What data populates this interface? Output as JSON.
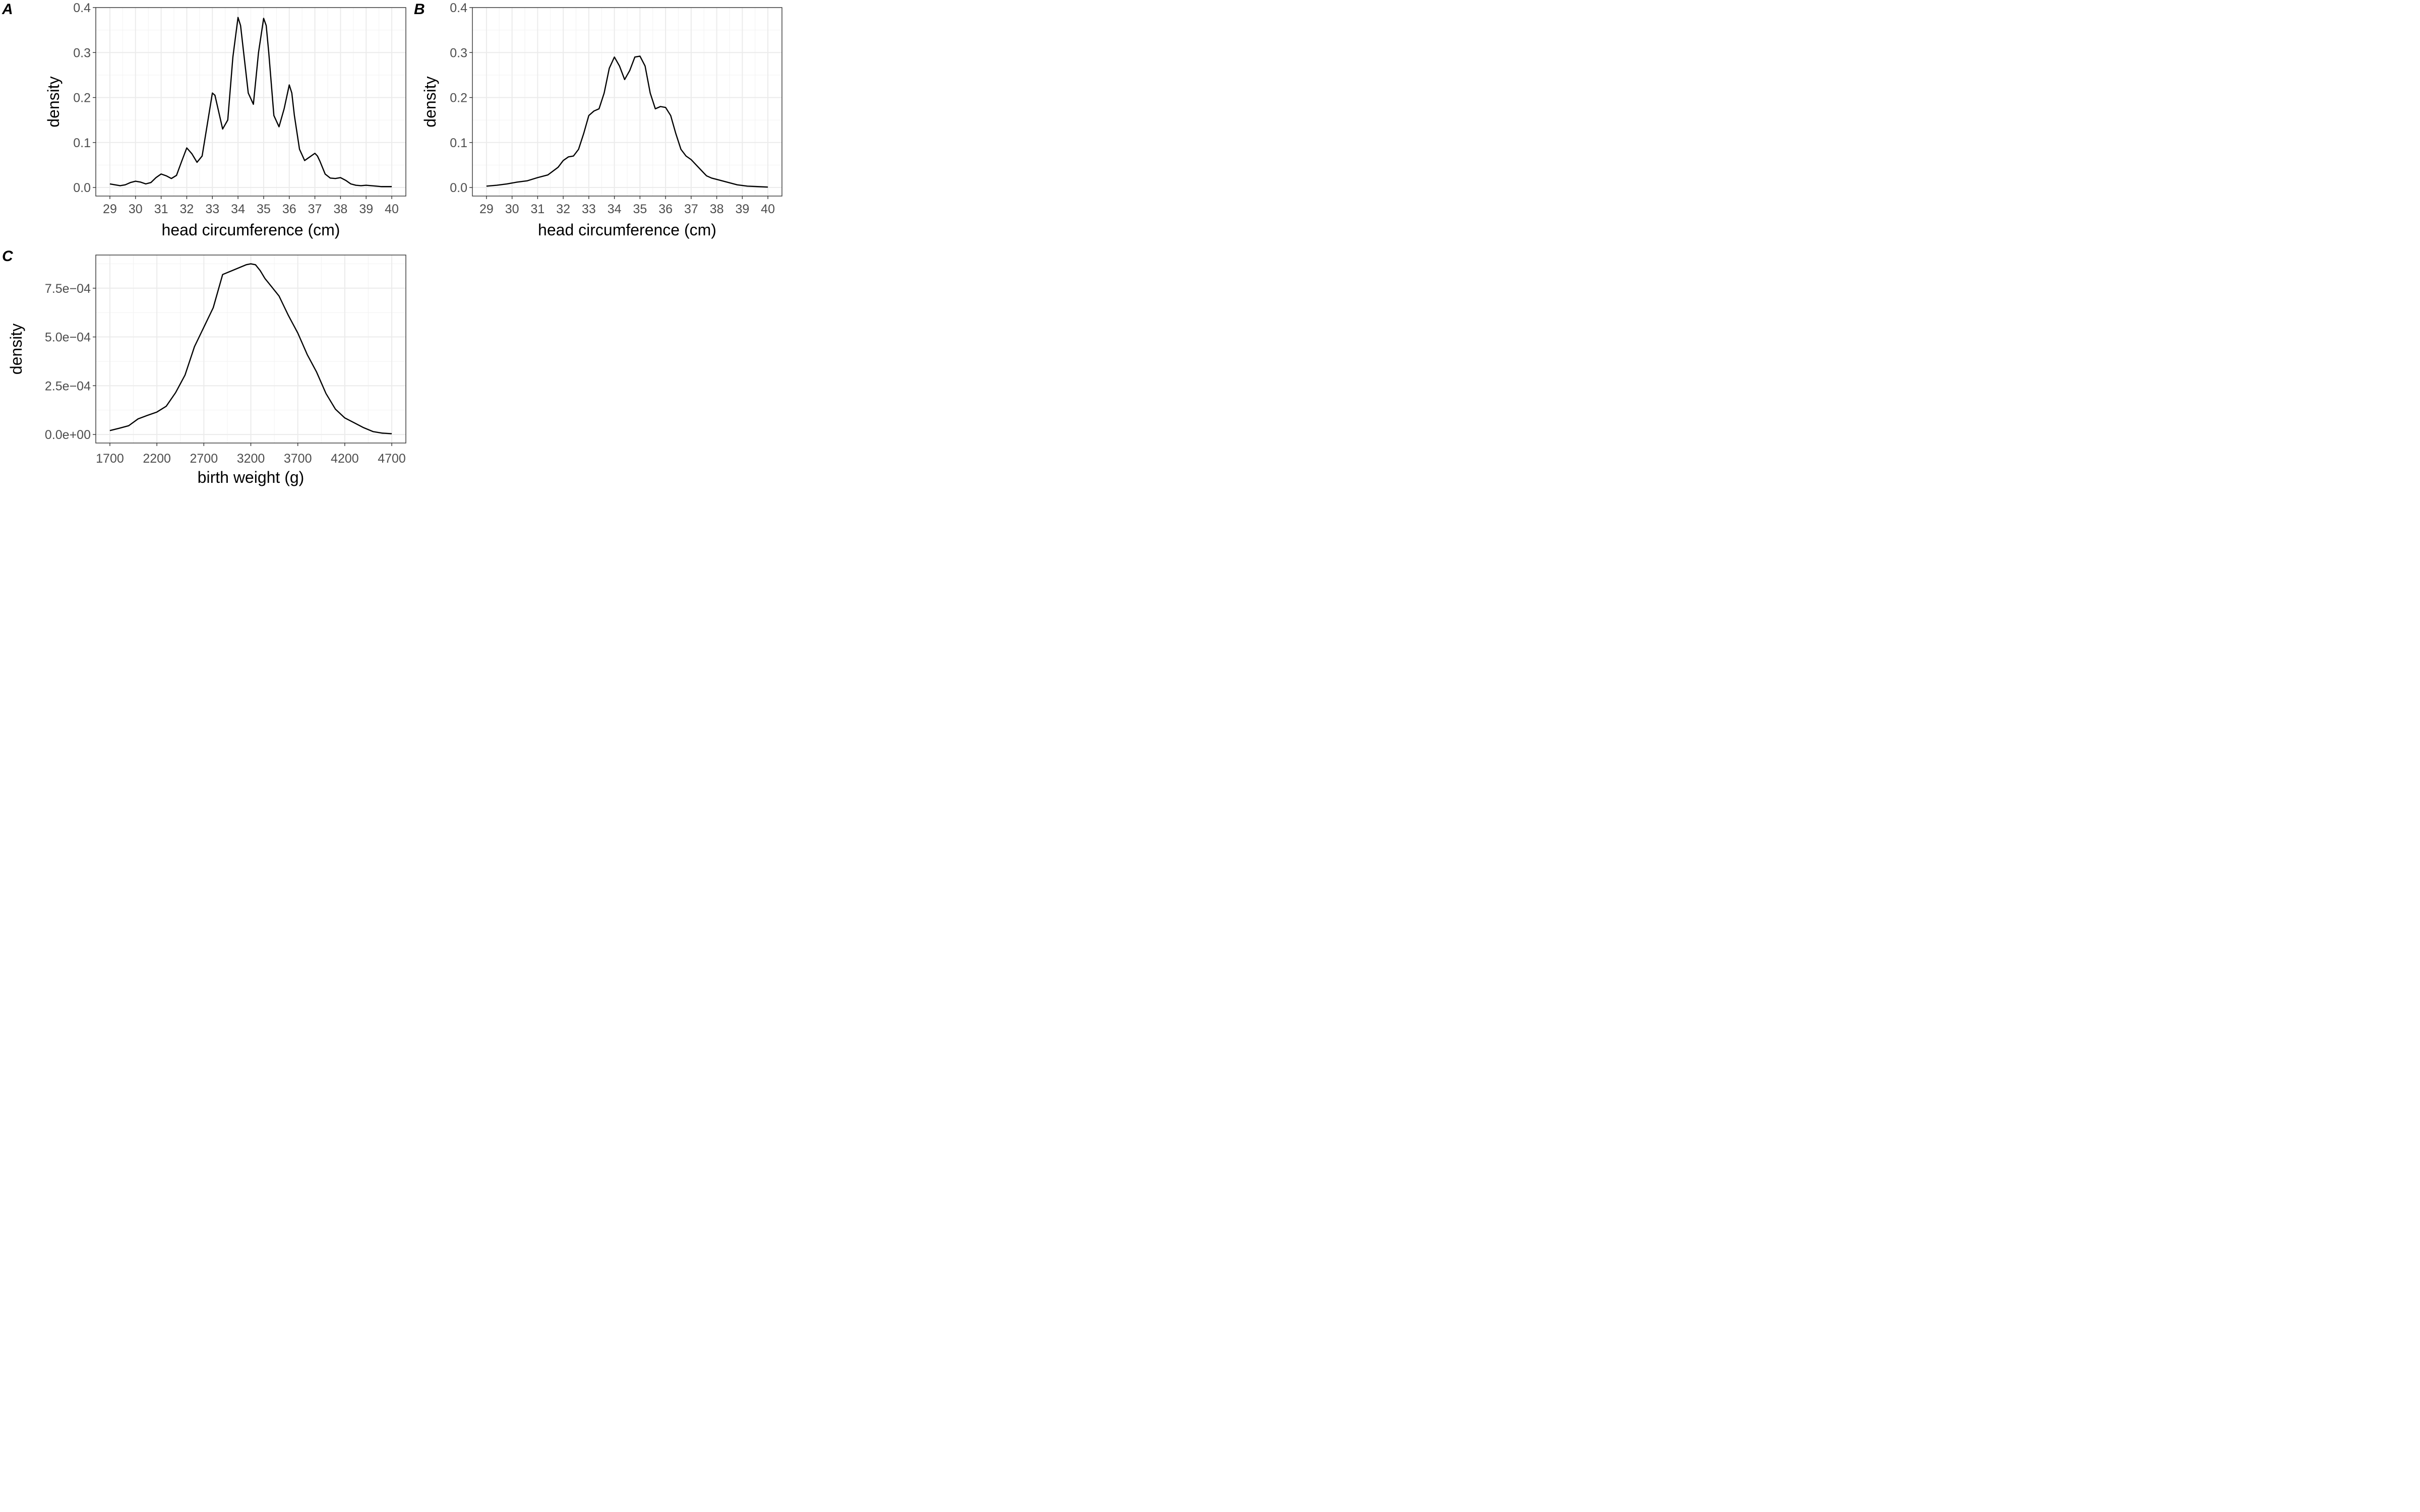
{
  "chart_data": [
    {
      "id": "A",
      "type": "line",
      "tag": "A",
      "xlabel": "head circumference (cm)",
      "ylabel": "density",
      "xlim": [
        28.45,
        40.55
      ],
      "ylim": [
        -0.019,
        0.4
      ],
      "xticks": [
        29,
        30,
        31,
        32,
        33,
        34,
        35,
        36,
        37,
        38,
        39,
        40
      ],
      "xtick_labels": [
        "29",
        "30",
        "31",
        "32",
        "33",
        "34",
        "35",
        "36",
        "37",
        "38",
        "39",
        "40"
      ],
      "yticks": [
        0,
        0.1,
        0.2,
        0.3,
        0.4
      ],
      "ytick_labels": [
        "0.0",
        "0.1",
        "0.2",
        "0.3",
        "0.4"
      ],
      "grid": true,
      "series": [
        {
          "x": [
            29.0,
            29.2,
            29.4,
            29.6,
            29.8,
            30.0,
            30.2,
            30.4,
            30.6,
            30.8,
            31.0,
            31.2,
            31.4,
            31.6,
            31.8,
            32.0,
            32.2,
            32.4,
            32.6,
            32.8,
            33.0,
            33.1,
            33.2,
            33.4,
            33.6,
            33.8,
            34.0,
            34.1,
            34.2,
            34.4,
            34.6,
            34.8,
            35.0,
            35.1,
            35.2,
            35.4,
            35.6,
            35.8,
            36.0,
            36.1,
            36.2,
            36.4,
            36.6,
            36.8,
            37.0,
            37.1,
            37.2,
            37.4,
            37.6,
            37.8,
            38.0,
            38.2,
            38.4,
            38.6,
            38.8,
            39.0,
            39.2,
            39.4,
            39.6,
            39.8,
            40.0
          ],
          "y": [
            0.008,
            0.006,
            0.004,
            0.006,
            0.011,
            0.014,
            0.012,
            0.008,
            0.011,
            0.022,
            0.03,
            0.026,
            0.02,
            0.027,
            0.058,
            0.088,
            0.075,
            0.056,
            0.07,
            0.14,
            0.21,
            0.205,
            0.18,
            0.13,
            0.15,
            0.29,
            0.378,
            0.36,
            0.31,
            0.21,
            0.185,
            0.3,
            0.376,
            0.36,
            0.3,
            0.16,
            0.135,
            0.175,
            0.228,
            0.21,
            0.16,
            0.085,
            0.06,
            0.068,
            0.076,
            0.07,
            0.058,
            0.03,
            0.021,
            0.02,
            0.022,
            0.016,
            0.008,
            0.005,
            0.004,
            0.005,
            0.004,
            0.003,
            0.002,
            0.002,
            0.002
          ]
        }
      ]
    },
    {
      "id": "B",
      "type": "line",
      "tag": "B",
      "xlabel": "head circumference (cm)",
      "ylabel": "density",
      "xlim": [
        28.45,
        40.55
      ],
      "ylim": [
        -0.019,
        0.4
      ],
      "xticks": [
        29,
        30,
        31,
        32,
        33,
        34,
        35,
        36,
        37,
        38,
        39,
        40
      ],
      "xtick_labels": [
        "29",
        "30",
        "31",
        "32",
        "33",
        "34",
        "35",
        "36",
        "37",
        "38",
        "39",
        "40"
      ],
      "yticks": [
        0,
        0.1,
        0.2,
        0.3,
        0.4
      ],
      "ytick_labels": [
        "0.0",
        "0.1",
        "0.2",
        "0.3",
        "0.4"
      ],
      "grid": true,
      "series": [
        {
          "x": [
            29.0,
            29.4,
            29.8,
            30.2,
            30.6,
            31.0,
            31.4,
            31.8,
            32.0,
            32.2,
            32.4,
            32.6,
            32.8,
            33.0,
            33.2,
            33.4,
            33.6,
            33.8,
            34.0,
            34.2,
            34.4,
            34.6,
            34.8,
            35.0,
            35.2,
            35.4,
            35.6,
            35.8,
            36.0,
            36.2,
            36.4,
            36.6,
            36.8,
            37.0,
            37.2,
            37.4,
            37.6,
            37.8,
            38.0,
            38.4,
            38.8,
            39.2,
            39.6,
            40.0
          ],
          "y": [
            0.003,
            0.005,
            0.008,
            0.012,
            0.015,
            0.022,
            0.028,
            0.045,
            0.06,
            0.068,
            0.07,
            0.085,
            0.12,
            0.16,
            0.17,
            0.175,
            0.21,
            0.265,
            0.29,
            0.27,
            0.24,
            0.26,
            0.29,
            0.292,
            0.27,
            0.21,
            0.175,
            0.18,
            0.178,
            0.16,
            0.12,
            0.085,
            0.07,
            0.062,
            0.05,
            0.038,
            0.026,
            0.021,
            0.018,
            0.012,
            0.006,
            0.003,
            0.002,
            0.001
          ]
        }
      ]
    },
    {
      "id": "C",
      "type": "line",
      "tag": "C",
      "xlabel": "birth weight (g)",
      "ylabel": "density",
      "xlim": [
        1550,
        4850
      ],
      "ylim": [
        -4.37e-05,
        0.00092
      ],
      "xticks": [
        1700,
        2200,
        2700,
        3200,
        3700,
        4200,
        4700
      ],
      "xtick_labels": [
        "1700",
        "2200",
        "2700",
        "3200",
        "3700",
        "4200",
        "4700"
      ],
      "yticks": [
        0,
        0.00025,
        0.0005,
        0.00075
      ],
      "ytick_labels": [
        "0.0e+00",
        "2.5e−04",
        "5.0e−04",
        "7.5e−04"
      ],
      "grid": true,
      "series": [
        {
          "x": [
            1700,
            1800,
            1900,
            2000,
            2100,
            2200,
            2300,
            2400,
            2500,
            2600,
            2700,
            2800,
            2900,
            3000,
            3050,
            3100,
            3150,
            3200,
            3250,
            3300,
            3350,
            3400,
            3450,
            3500,
            3600,
            3700,
            3800,
            3900,
            4000,
            4100,
            4200,
            4300,
            4400,
            4500,
            4600,
            4700
          ],
          "y": [
            2e-05,
            3.2e-05,
            4.5e-05,
            8e-05,
            9.8e-05,
            0.000115,
            0.000145,
            0.000215,
            0.000305,
            0.00045,
            0.00055,
            0.00065,
            0.00082,
            0.00084,
            0.00085,
            0.00086,
            0.00087,
            0.000875,
            0.00087,
            0.00084,
            0.0008,
            0.00077,
            0.00074,
            0.00071,
            0.00061,
            0.00052,
            0.00041,
            0.00032,
            0.00021,
            0.00013,
            8.5e-05,
            6e-05,
            3.5e-05,
            1.5e-05,
            7e-06,
            4e-06
          ]
        }
      ]
    }
  ]
}
